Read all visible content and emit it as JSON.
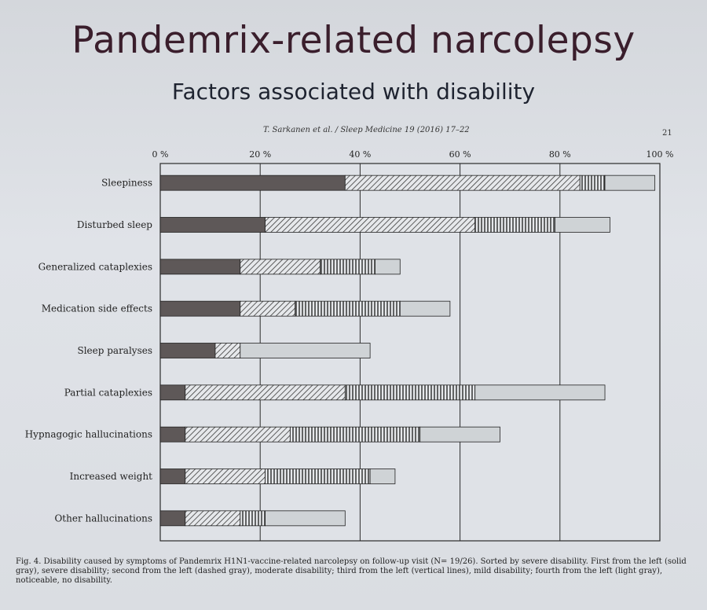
{
  "slide": {
    "title": "Pandemrix-related narcolepsy",
    "subtitle": "Factors associated with disability"
  },
  "figure": {
    "citation": "T. Sarkanen et al. / Sleep Medicine 19 (2016) 17–22",
    "page_number": "21",
    "caption": "Fig. 4. Disability caused by symptoms of Pandemrix H1N1-vaccine-related narcolepsy on follow-up visit (N= 19/26). Sorted by severe disability. First from the left (solid gray), severe disability; second from the left (dashed gray), moderate disability; third from the left (vertical lines), mild disability; fourth from the left (light gray), noticeable, no disability."
  },
  "colors": {
    "severe": "#5e5858",
    "moderate_hatch": "#3a3a3a",
    "mild_lines": "#2a2a2a",
    "noticeable": "#cfd3d6",
    "grid": "#2b2b2b",
    "plot_bg": "#dfe2e7"
  },
  "chart_data": {
    "type": "bar",
    "orientation": "horizontal",
    "stacked": true,
    "xlim": [
      0,
      100
    ],
    "x_ticks": [
      "0 %",
      "20 %",
      "40 %",
      "60 %",
      "80 %",
      "100 %"
    ],
    "x_tick_values": [
      0,
      20,
      40,
      60,
      80,
      100
    ],
    "grid": true,
    "categories": [
      "Sleepiness",
      "Disturbed sleep",
      "Generalized cataplexies",
      "Medication side effects",
      "Sleep paralyses",
      "Partial cataplexies",
      "Hypnagogic hallucinations",
      "Increased weight",
      "Other hallucinations"
    ],
    "series": [
      {
        "key": "severe",
        "pattern": "solid",
        "values": [
          37,
          21,
          16,
          16,
          11,
          5,
          5,
          5,
          5
        ]
      },
      {
        "key": "moderate",
        "pattern": "diagonal",
        "values": [
          47,
          42,
          16,
          11,
          5,
          32,
          21,
          16,
          11
        ]
      },
      {
        "key": "mild",
        "pattern": "vertical",
        "values": [
          5,
          16,
          11,
          21,
          0,
          26,
          26,
          21,
          5
        ]
      },
      {
        "key": "noticeable",
        "pattern": "light",
        "values": [
          10,
          11,
          5,
          10,
          26,
          26,
          16,
          5,
          16
        ]
      }
    ]
  }
}
